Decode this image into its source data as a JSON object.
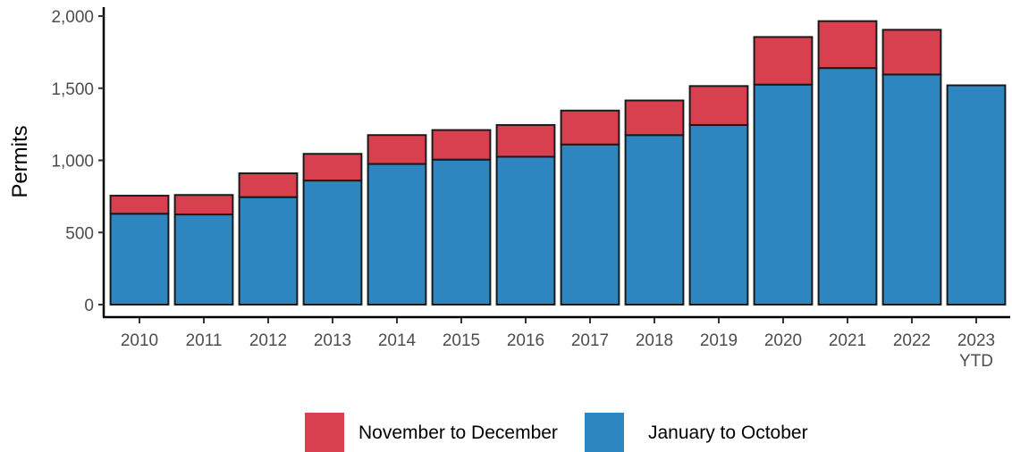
{
  "chart_data": {
    "type": "bar",
    "stacked": true,
    "categories": [
      "2010",
      "2011",
      "2012",
      "2013",
      "2014",
      "2015",
      "2016",
      "2017",
      "2018",
      "2019",
      "2020",
      "2021",
      "2022",
      "2023 YTD"
    ],
    "category_lines": [
      [
        "2010"
      ],
      [
        "2011"
      ],
      [
        "2012"
      ],
      [
        "2013"
      ],
      [
        "2014"
      ],
      [
        "2015"
      ],
      [
        "2016"
      ],
      [
        "2017"
      ],
      [
        "2018"
      ],
      [
        "2019"
      ],
      [
        "2020"
      ],
      [
        "2021"
      ],
      [
        "2022"
      ],
      [
        "2023",
        "YTD"
      ]
    ],
    "series": [
      {
        "name": "January to October",
        "color": "#2e86c1",
        "values": [
          630,
          625,
          745,
          860,
          975,
          1005,
          1025,
          1110,
          1175,
          1245,
          1525,
          1640,
          1595,
          1520
        ]
      },
      {
        "name": "November to December",
        "color": "#d9404f",
        "values": [
          125,
          135,
          165,
          185,
          200,
          205,
          220,
          235,
          240,
          270,
          330,
          325,
          310,
          0
        ]
      }
    ],
    "xlabel": "",
    "ylabel": "Permits",
    "ylim": [
      0,
      2000
    ],
    "yticks": [
      0,
      500,
      1000,
      1500,
      2000
    ],
    "ytick_labels": [
      "0",
      "500",
      "1,000",
      "1,500",
      "2,000"
    ],
    "grid": false,
    "legend_position": "bottom",
    "legend_order": [
      "November to December",
      "January to October"
    ]
  }
}
